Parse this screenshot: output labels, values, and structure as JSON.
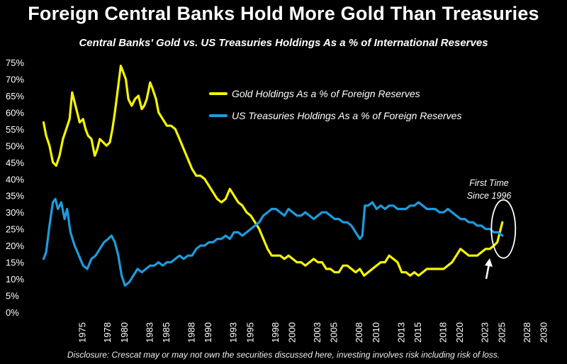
{
  "header": {
    "title": "Foreign Central Banks Hold More Gold Than Treasuries",
    "subtitle": "Central Banks' Gold vs. US Treasuries Holdings As a % of International Reserves"
  },
  "footer": {
    "disclosure": "Disclosure: Crescat may or may not own the securities discussed here, investing involves risk including risk of loss."
  },
  "chart_data": {
    "type": "line",
    "title": "Foreign Central Banks Hold More Gold Than Treasuries",
    "subtitle": "Central Banks' Gold vs. US Treasuries Holdings As a % of International Reserves",
    "xlabel": "",
    "ylabel": "",
    "xlim": [
      1970,
      2030
    ],
    "ylim": [
      0,
      75
    ],
    "x_ticks": [
      1975,
      1978,
      1980,
      1983,
      1985,
      1988,
      1990,
      1993,
      1995,
      1998,
      2000,
      2003,
      2005,
      2008,
      2010,
      2013,
      2015,
      2018,
      2020,
      2023,
      2025,
      2028,
      2030
    ],
    "y_ticks": [
      0,
      5,
      10,
      15,
      20,
      25,
      30,
      35,
      40,
      45,
      50,
      55,
      60,
      65,
      70,
      75
    ],
    "y_tick_suffix": "%",
    "grid": false,
    "legend_position": "top-right",
    "series": [
      {
        "name": "Gold Holdings As a % of Foreign Reserves",
        "color": "#f5f500",
        "points": [
          [
            1970.3,
            57
          ],
          [
            1970.6,
            53
          ],
          [
            1971,
            50
          ],
          [
            1971.4,
            45
          ],
          [
            1971.8,
            44
          ],
          [
            1972.2,
            47
          ],
          [
            1972.6,
            52
          ],
          [
            1973,
            55
          ],
          [
            1973.4,
            58
          ],
          [
            1973.7,
            66
          ],
          [
            1974,
            63
          ],
          [
            1974.3,
            60
          ],
          [
            1974.6,
            57
          ],
          [
            1975,
            58
          ],
          [
            1975.3,
            55
          ],
          [
            1975.6,
            53
          ],
          [
            1976,
            52
          ],
          [
            1976.4,
            47
          ],
          [
            1976.7,
            49
          ],
          [
            1977,
            52
          ],
          [
            1977.4,
            51
          ],
          [
            1977.8,
            50
          ],
          [
            1978.2,
            51
          ],
          [
            1978.5,
            55
          ],
          [
            1978.8,
            60
          ],
          [
            1979.1,
            66
          ],
          [
            1979.5,
            74
          ],
          [
            1979.8,
            72
          ],
          [
            1980.1,
            70
          ],
          [
            1980.4,
            64
          ],
          [
            1980.8,
            62
          ],
          [
            1981.2,
            64
          ],
          [
            1981.6,
            65
          ],
          [
            1982,
            61
          ],
          [
            1982.3,
            62
          ],
          [
            1982.6,
            64
          ],
          [
            1983,
            69
          ],
          [
            1983.3,
            67
          ],
          [
            1983.7,
            64
          ],
          [
            1984,
            60
          ],
          [
            1984.5,
            58
          ],
          [
            1985,
            56
          ],
          [
            1985.5,
            56
          ],
          [
            1986,
            55
          ],
          [
            1986.5,
            52
          ],
          [
            1987,
            49
          ],
          [
            1987.5,
            46
          ],
          [
            1988,
            43
          ],
          [
            1988.5,
            41
          ],
          [
            1989,
            41
          ],
          [
            1989.5,
            40
          ],
          [
            1990,
            38
          ],
          [
            1990.5,
            36
          ],
          [
            1991,
            34
          ],
          [
            1991.5,
            33
          ],
          [
            1992,
            34
          ],
          [
            1992.5,
            37
          ],
          [
            1993,
            35
          ],
          [
            1993.5,
            33
          ],
          [
            1994,
            32
          ],
          [
            1994.5,
            30
          ],
          [
            1995,
            29
          ],
          [
            1995.5,
            27
          ],
          [
            1996,
            25
          ],
          [
            1996.5,
            22
          ],
          [
            1997,
            19
          ],
          [
            1997.5,
            17
          ],
          [
            1998,
            17
          ],
          [
            1998.5,
            17
          ],
          [
            1999,
            16
          ],
          [
            1999.5,
            17
          ],
          [
            2000,
            16
          ],
          [
            2000.5,
            15
          ],
          [
            2001,
            15
          ],
          [
            2001.5,
            14
          ],
          [
            2002,
            15
          ],
          [
            2002.5,
            16
          ],
          [
            2003,
            15
          ],
          [
            2003.5,
            15
          ],
          [
            2004,
            13
          ],
          [
            2004.5,
            13
          ],
          [
            2005,
            12
          ],
          [
            2005.5,
            12
          ],
          [
            2006,
            14
          ],
          [
            2006.5,
            14
          ],
          [
            2007,
            13
          ],
          [
            2007.5,
            12
          ],
          [
            2008,
            13
          ],
          [
            2008.5,
            11
          ],
          [
            2009,
            12
          ],
          [
            2009.5,
            13
          ],
          [
            2010,
            14
          ],
          [
            2010.5,
            15
          ],
          [
            2011,
            15
          ],
          [
            2011.5,
            17
          ],
          [
            2012,
            16
          ],
          [
            2012.5,
            15
          ],
          [
            2013,
            12
          ],
          [
            2013.5,
            12
          ],
          [
            2014,
            11
          ],
          [
            2014.5,
            12
          ],
          [
            2015,
            11
          ],
          [
            2015.5,
            12
          ],
          [
            2016,
            13
          ],
          [
            2016.5,
            13
          ],
          [
            2017,
            13
          ],
          [
            2017.5,
            13
          ],
          [
            2018,
            13
          ],
          [
            2018.5,
            14
          ],
          [
            2019,
            15
          ],
          [
            2019.5,
            17
          ],
          [
            2020,
            19
          ],
          [
            2020.5,
            18
          ],
          [
            2021,
            17
          ],
          [
            2021.5,
            17
          ],
          [
            2022,
            17
          ],
          [
            2022.5,
            18
          ],
          [
            2023,
            19
          ],
          [
            2023.5,
            19
          ],
          [
            2024,
            20
          ],
          [
            2024.4,
            21
          ],
          [
            2024.7,
            24
          ],
          [
            2025,
            27
          ]
        ]
      },
      {
        "name": "US Treasuries Holdings As a % of Foreign Reserves",
        "color": "#1e9bdc",
        "points": [
          [
            1970.3,
            16
          ],
          [
            1970.6,
            18
          ],
          [
            1971,
            26
          ],
          [
            1971.4,
            33
          ],
          [
            1971.7,
            34
          ],
          [
            1972,
            31
          ],
          [
            1972.4,
            33
          ],
          [
            1972.8,
            28
          ],
          [
            1973.1,
            31
          ],
          [
            1973.5,
            24
          ],
          [
            1974,
            20
          ],
          [
            1974.5,
            17
          ],
          [
            1975,
            14
          ],
          [
            1975.5,
            13
          ],
          [
            1976,
            16
          ],
          [
            1976.5,
            17
          ],
          [
            1977,
            19
          ],
          [
            1977.5,
            21
          ],
          [
            1978,
            22
          ],
          [
            1978.4,
            23
          ],
          [
            1978.8,
            21
          ],
          [
            1979.2,
            17
          ],
          [
            1979.6,
            11
          ],
          [
            1980,
            8
          ],
          [
            1980.5,
            9
          ],
          [
            1981,
            11
          ],
          [
            1981.5,
            13
          ],
          [
            1982,
            12
          ],
          [
            1982.5,
            13
          ],
          [
            1983,
            14
          ],
          [
            1983.5,
            14
          ],
          [
            1984,
            15
          ],
          [
            1984.5,
            14
          ],
          [
            1985,
            15
          ],
          [
            1985.5,
            15
          ],
          [
            1986,
            16
          ],
          [
            1986.5,
            17
          ],
          [
            1987,
            16
          ],
          [
            1987.5,
            17
          ],
          [
            1988,
            17
          ],
          [
            1988.5,
            19
          ],
          [
            1989,
            20
          ],
          [
            1989.5,
            20
          ],
          [
            1990,
            21
          ],
          [
            1990.5,
            21
          ],
          [
            1991,
            22
          ],
          [
            1991.5,
            22
          ],
          [
            1992,
            23
          ],
          [
            1992.5,
            22
          ],
          [
            1993,
            24
          ],
          [
            1993.5,
            24
          ],
          [
            1994,
            23
          ],
          [
            1994.5,
            24
          ],
          [
            1995,
            25
          ],
          [
            1995.5,
            26
          ],
          [
            1996,
            27
          ],
          [
            1996.5,
            29
          ],
          [
            1997,
            30
          ],
          [
            1997.5,
            31
          ],
          [
            1998,
            31
          ],
          [
            1998.5,
            30
          ],
          [
            1999,
            29
          ],
          [
            1999.5,
            31
          ],
          [
            2000,
            30
          ],
          [
            2000.5,
            29
          ],
          [
            2001,
            29
          ],
          [
            2001.5,
            30
          ],
          [
            2002,
            29
          ],
          [
            2002.5,
            28
          ],
          [
            2003,
            29
          ],
          [
            2003.5,
            30
          ],
          [
            2004,
            30
          ],
          [
            2004.5,
            29
          ],
          [
            2005,
            28
          ],
          [
            2005.5,
            28
          ],
          [
            2006,
            27
          ],
          [
            2006.5,
            27
          ],
          [
            2007,
            26
          ],
          [
            2007.5,
            24
          ],
          [
            2008,
            22
          ],
          [
            2008.3,
            23
          ],
          [
            2008.6,
            32
          ],
          [
            2009,
            32
          ],
          [
            2009.5,
            33
          ],
          [
            2010,
            31
          ],
          [
            2010.5,
            32
          ],
          [
            2011,
            31
          ],
          [
            2011.5,
            32
          ],
          [
            2012,
            32
          ],
          [
            2012.5,
            31
          ],
          [
            2013,
            31
          ],
          [
            2013.5,
            31
          ],
          [
            2014,
            32
          ],
          [
            2014.5,
            32
          ],
          [
            2015,
            33
          ],
          [
            2015.5,
            32
          ],
          [
            2016,
            31
          ],
          [
            2016.5,
            31
          ],
          [
            2017,
            31
          ],
          [
            2017.5,
            30
          ],
          [
            2018,
            30
          ],
          [
            2018.5,
            31
          ],
          [
            2019,
            30
          ],
          [
            2019.5,
            29
          ],
          [
            2020,
            28
          ],
          [
            2020.5,
            28
          ],
          [
            2021,
            27
          ],
          [
            2021.5,
            27
          ],
          [
            2022,
            26
          ],
          [
            2022.5,
            26
          ],
          [
            2023,
            25
          ],
          [
            2023.5,
            25
          ],
          [
            2024,
            24
          ],
          [
            2024.5,
            24
          ],
          [
            2025,
            23
          ]
        ]
      }
    ],
    "annotations": [
      {
        "text_lines": [
          "First Time",
          "Since 1996"
        ],
        "x": 2024.7,
        "y": 25
      }
    ]
  }
}
